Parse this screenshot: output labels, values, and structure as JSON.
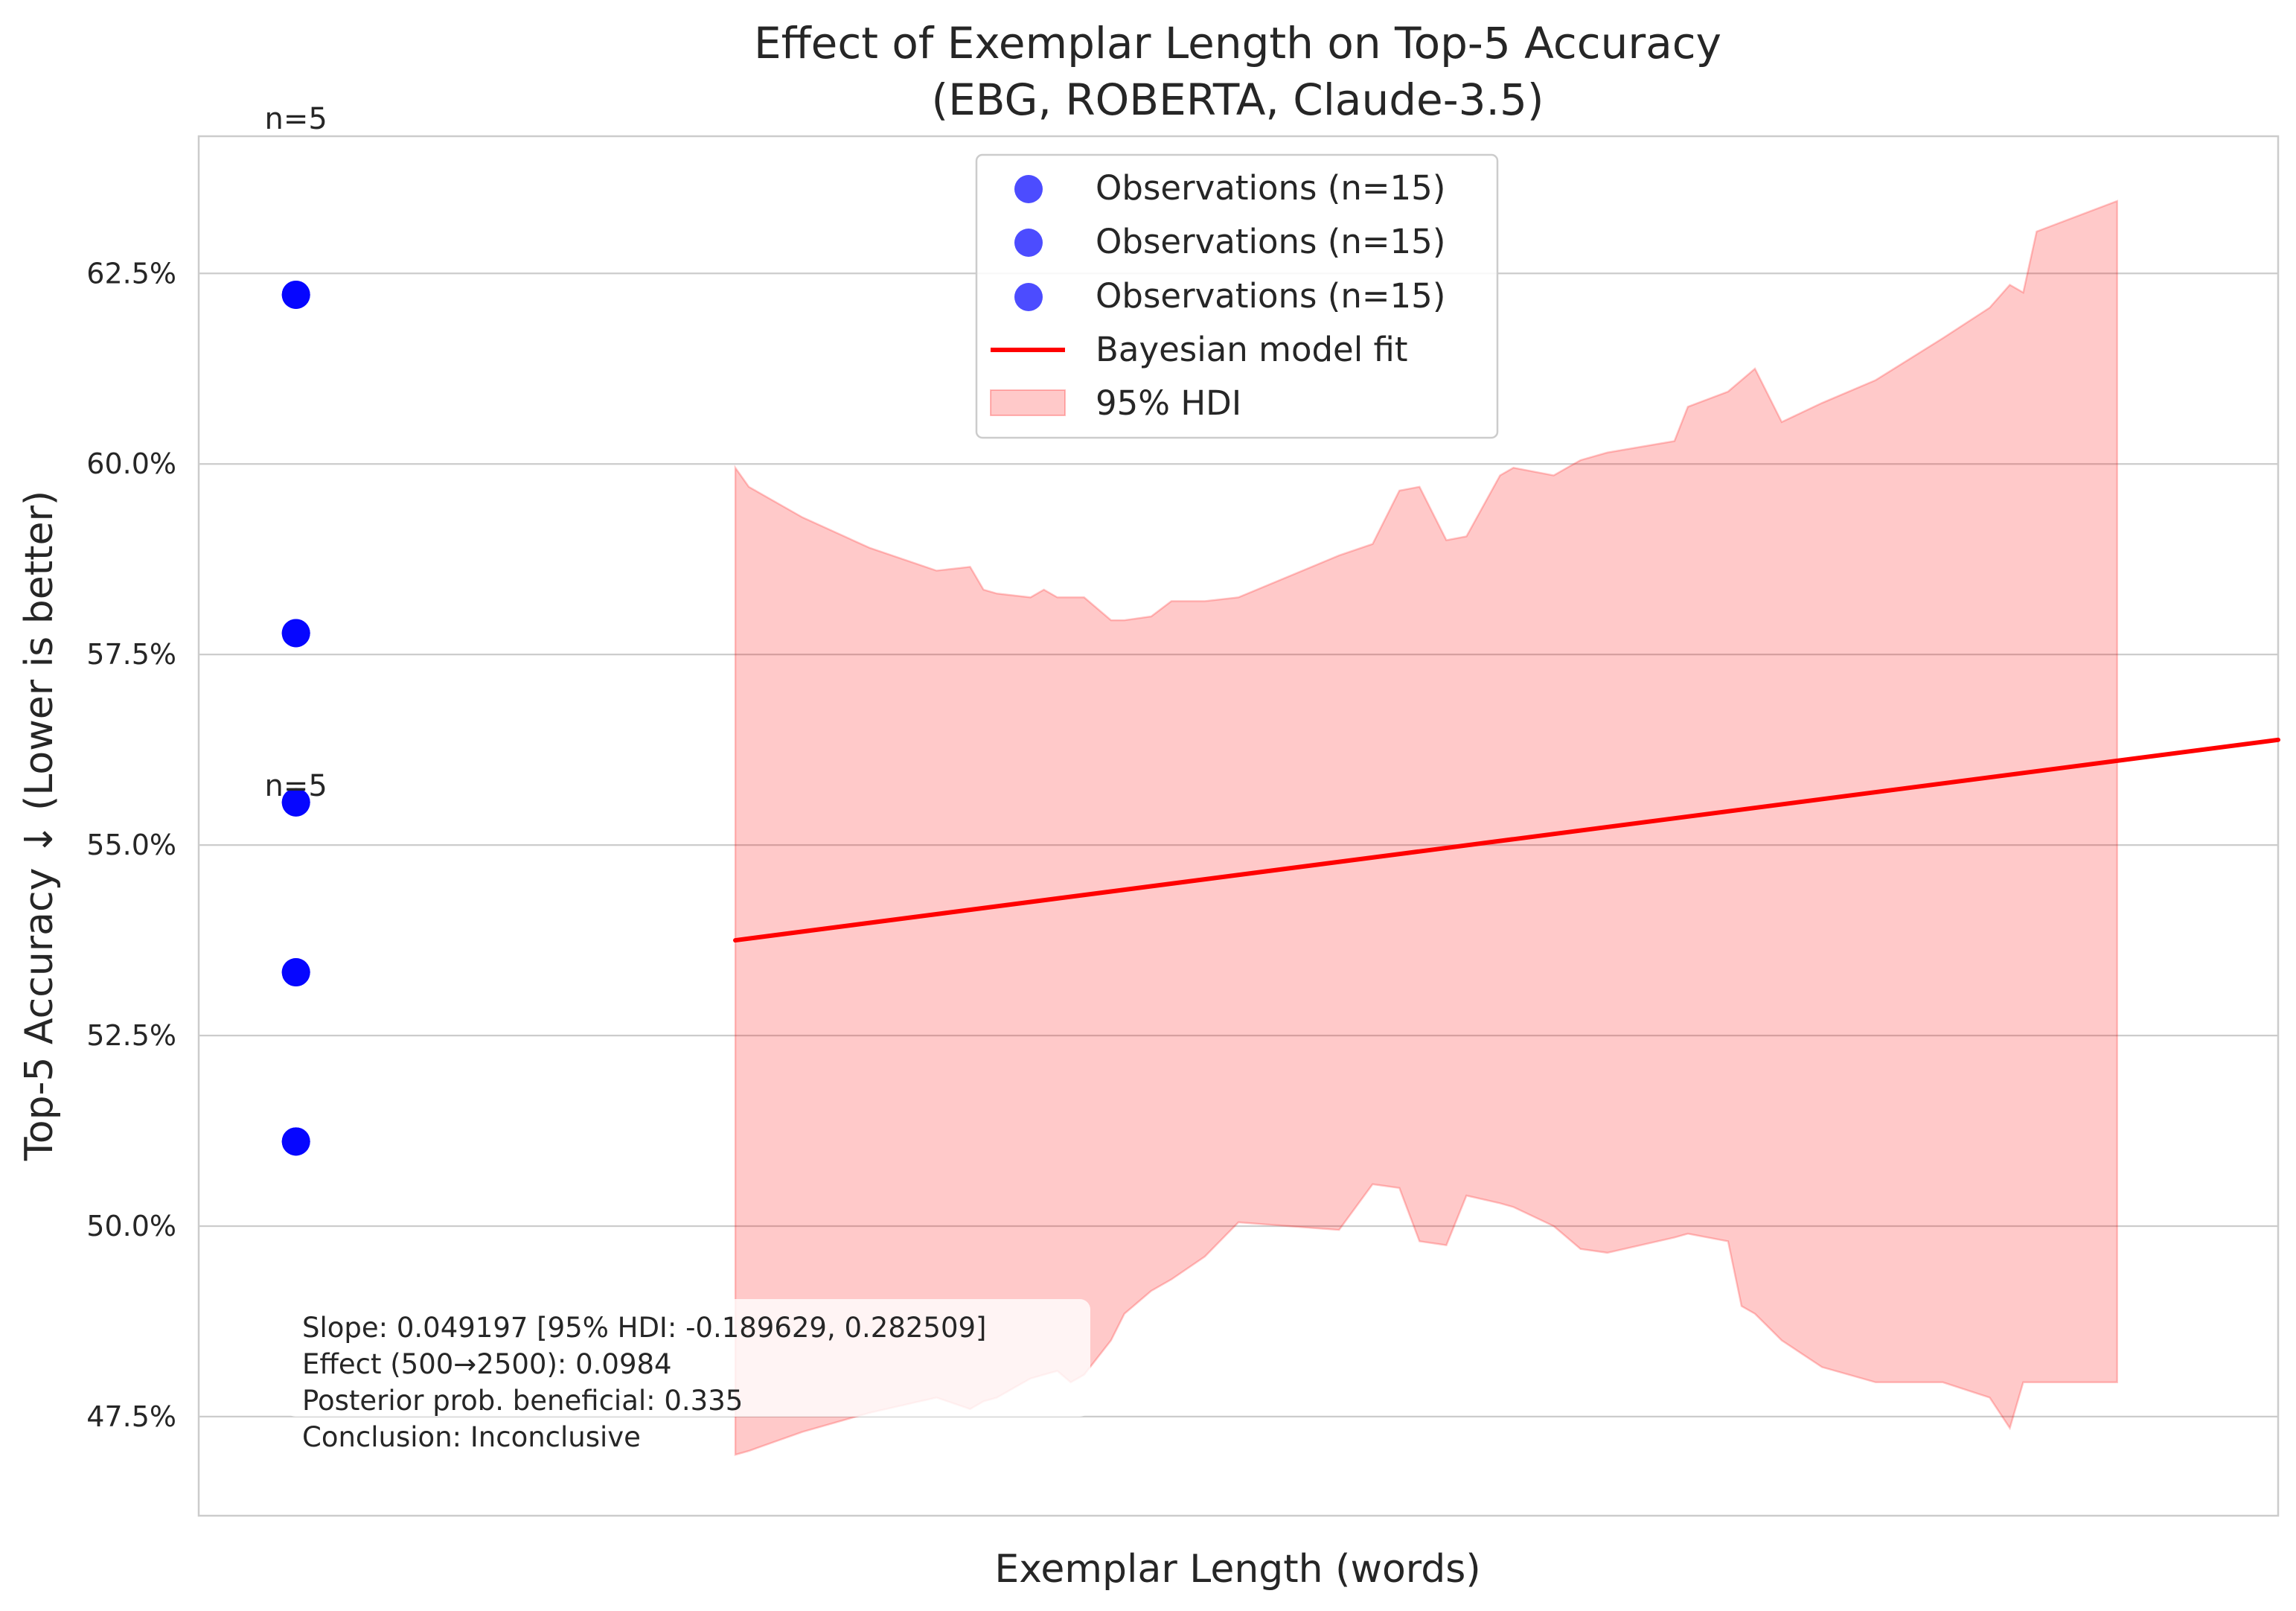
{
  "chart_data": {
    "type": "scatter",
    "title_line1": "Effect of Exemplar Length on Top-5 Accuracy",
    "title_line2": "(EBG, ROBERTA, Claude-3.5)",
    "xlabel": "Exemplar Length (words)",
    "ylabel": "Top-5 Accuracy ↓ (Lower is better)",
    "ylim": [
      46.2,
      64.3
    ],
    "xlim": [
      -300,
      2800
    ],
    "grid": true,
    "y_ticks": [
      {
        "value": 47.5,
        "label": "47.5%"
      },
      {
        "value": 50.0,
        "label": "50.0%"
      },
      {
        "value": 52.5,
        "label": "52.5%"
      },
      {
        "value": 55.0,
        "label": "55.0%"
      },
      {
        "value": 57.5,
        "label": "57.5%"
      },
      {
        "value": 60.0,
        "label": "60.0%"
      },
      {
        "value": 62.5,
        "label": "62.5%"
      }
    ],
    "observations": {
      "x": -155,
      "y": [
        62.22,
        57.78,
        55.56,
        53.33,
        51.11
      ],
      "color": "#0000ff"
    },
    "count_annotations": [
      {
        "text": "n=5",
        "x": -155,
        "y": 64.3
      },
      {
        "text": "n=5",
        "x": -155,
        "y": 55.55
      }
    ],
    "fit_line": {
      "x": [
        500,
        2800
      ],
      "y": [
        53.75,
        56.38
      ],
      "color": "#ff0000"
    },
    "hdi": {
      "color": "#ff0000",
      "opacity": 0.21,
      "x": [
        500,
        520,
        600,
        700,
        800,
        850,
        870,
        890,
        940,
        960,
        980,
        1000,
        1020,
        1060,
        1080,
        1120,
        1150,
        1200,
        1250,
        1400,
        1450,
        1490,
        1520,
        1560,
        1590,
        1640,
        1660,
        1720,
        1740,
        1760,
        1800,
        1900,
        1920,
        1980,
        2000,
        2020,
        2060,
        2120,
        2200,
        2300,
        2370,
        2400,
        2420,
        2440,
        2560
      ],
      "upper": [
        59.95,
        59.7,
        59.3,
        58.9,
        58.6,
        58.65,
        58.35,
        58.3,
        58.25,
        58.35,
        58.25,
        58.25,
        58.25,
        57.95,
        57.95,
        58.0,
        58.2,
        58.2,
        58.25,
        58.8,
        58.95,
        59.65,
        59.7,
        59.0,
        59.05,
        59.85,
        59.95,
        59.85,
        59.95,
        60.05,
        60.15,
        60.3,
        60.75,
        60.95,
        61.1,
        61.25,
        60.55,
        60.8,
        61.1,
        61.65,
        62.05,
        62.35,
        62.25,
        63.05,
        63.45
      ],
      "lower": [
        47.0,
        47.05,
        47.3,
        47.55,
        47.75,
        47.6,
        47.7,
        47.75,
        48.0,
        48.05,
        48.1,
        47.95,
        48.05,
        48.5,
        48.85,
        49.15,
        49.3,
        49.6,
        50.05,
        49.95,
        50.55,
        50.5,
        49.8,
        49.75,
        50.4,
        50.3,
        50.25,
        50.0,
        49.85,
        49.7,
        49.65,
        49.85,
        49.9,
        49.8,
        48.95,
        48.85,
        48.5,
        48.15,
        47.95,
        47.95,
        47.75,
        47.35,
        47.95,
        47.95,
        47.95
      ]
    },
    "legend": {
      "position": "upper center",
      "entries": [
        {
          "label": "Observations (n=15)",
          "kind": "marker"
        },
        {
          "label": "Observations (n=15)",
          "kind": "marker"
        },
        {
          "label": "Observations (n=15)",
          "kind": "marker"
        },
        {
          "label": "Bayesian model fit",
          "kind": "line"
        },
        {
          "label": "95% HDI",
          "kind": "patch"
        }
      ]
    },
    "stats_box": {
      "lines": [
        "Slope: 0.049197 [95% HDI: -0.189629, 0.282509]",
        "Effect (500→2500): 0.0984",
        "Posterior prob. beneficial: 0.335",
        "Conclusion: Inconclusive"
      ]
    }
  }
}
